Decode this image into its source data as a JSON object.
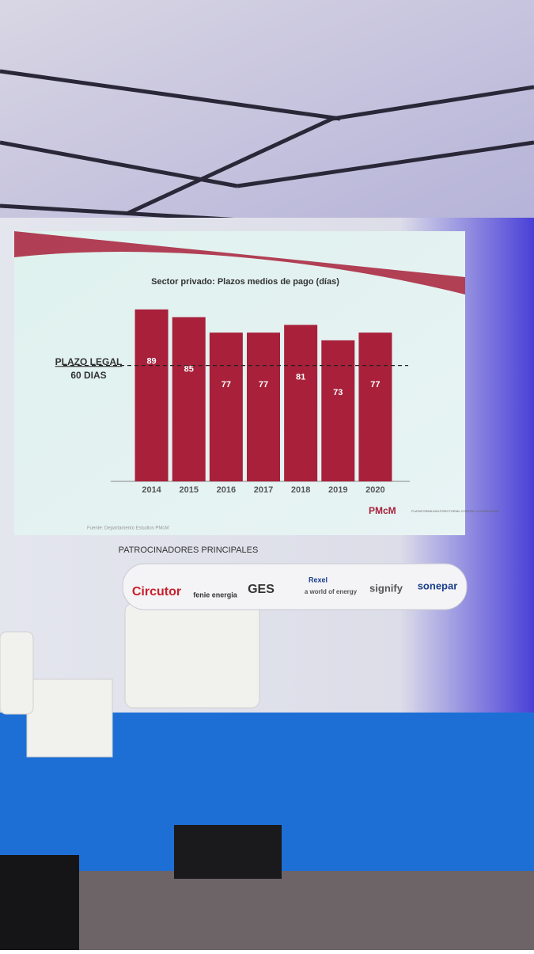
{
  "chart_data": {
    "type": "bar",
    "title": "Sector privado: Plazos medios de pago (días)",
    "categories": [
      "2014",
      "2015",
      "2016",
      "2017",
      "2018",
      "2019",
      "2020"
    ],
    "values": [
      89,
      85,
      77,
      77,
      81,
      73,
      77
    ],
    "color": "#a8203a",
    "reference_line": {
      "value": 60,
      "label": "PLAZO LEGAL",
      "sublabel": "60 DIAS"
    },
    "source": "Fuente: Departamento Estudios PMcM",
    "logo": "PMcM",
    "logo_text": "PLATAFORMA MULTISECTORIAL CONTRA LA MOROSIDAD"
  },
  "sponsors": {
    "title": "PATROCINADORES PRINCIPALES",
    "names": [
      "Circutor",
      "fenie energia",
      "GES",
      "Rexel",
      "a world of energy",
      "signify",
      "sonepar"
    ]
  }
}
